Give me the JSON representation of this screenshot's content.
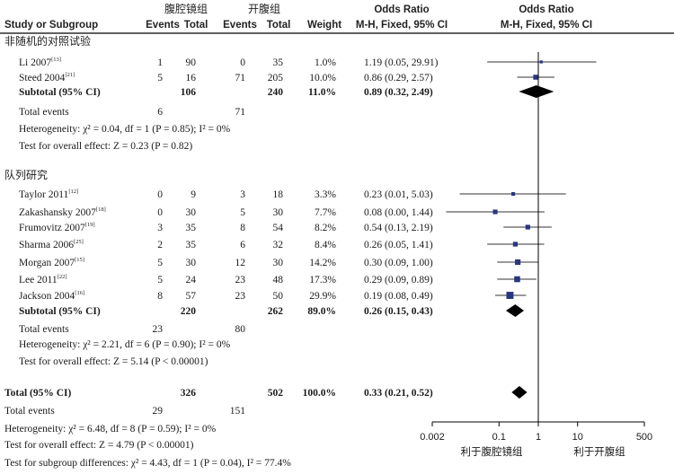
{
  "header": {
    "study_col": "Study or Subgroup",
    "group1": "腹腔镜组",
    "group2": "开腹组",
    "events": "Events",
    "total": "Total",
    "weight": "Weight",
    "or1_title": "Odds Ratio",
    "or1_sub": "M-H, Fixed, 95% CI",
    "or2_title": "Odds Ratio",
    "or2_sub": "M-H, Fixed, 95% CI"
  },
  "subgroups": [
    {
      "title": "非随机的对照试验",
      "studies": [
        {
          "name": "Li 2007",
          "ref": "[13]",
          "e1": "1",
          "t1": "90",
          "e2": "0",
          "t2": "35",
          "weight": "1.0%",
          "ci_text": "1.19 (0.05, 29.91)",
          "or": 1.19,
          "lo": 0.05,
          "hi": 29.91,
          "w": 1.0
        },
        {
          "name": "Steed 2004",
          "ref": "[21]",
          "e1": "5",
          "t1": "16",
          "e2": "71",
          "t2": "205",
          "weight": "10.0%",
          "ci_text": "0.86 (0.29, 2.57)",
          "or": 0.86,
          "lo": 0.29,
          "hi": 2.57,
          "w": 10.0
        }
      ],
      "subtotal": {
        "label": "Subtotal (95% CI)",
        "t1": "106",
        "t2": "240",
        "weight": "11.0%",
        "ci_text": "0.89 (0.32, 2.49)",
        "or": 0.89,
        "lo": 0.32,
        "hi": 2.49
      },
      "total_events": {
        "label": "Total events",
        "e1": "6",
        "e2": "71"
      },
      "heterogeneity": "Heterogeneity: χ² = 0.04, df = 1 (P = 0.85); I² = 0%",
      "overall": "Test for overall effect: Z = 0.23 (P = 0.82)"
    },
    {
      "title": "队列研究",
      "studies": [
        {
          "name": "Taylor 2011",
          "ref": "[12]",
          "e1": "0",
          "t1": "9",
          "e2": "3",
          "t2": "18",
          "weight": "3.3%",
          "ci_text": "0.23 (0.01, 5.03)",
          "or": 0.23,
          "lo": 0.01,
          "hi": 5.03,
          "w": 3.3
        },
        {
          "name": "Zakashansky 2007",
          "ref": "[18]",
          "e1": "0",
          "t1": "30",
          "e2": "5",
          "t2": "30",
          "weight": "7.7%",
          "ci_text": "0.08 (0.00, 1.44)",
          "or": 0.08,
          "lo": 0.0045,
          "hi": 1.44,
          "w": 7.7
        },
        {
          "name": "Frumovitz 2007",
          "ref": "[19]",
          "e1": "3",
          "t1": "35",
          "e2": "8",
          "t2": "54",
          "weight": "8.2%",
          "ci_text": "0.54 (0.13, 2.19)",
          "or": 0.54,
          "lo": 0.13,
          "hi": 2.19,
          "w": 8.2
        },
        {
          "name": "Sharma 2006",
          "ref": "[25]",
          "e1": "2",
          "t1": "35",
          "e2": "6",
          "t2": "32",
          "weight": "8.4%",
          "ci_text": "0.26 (0.05, 1.41)",
          "or": 0.26,
          "lo": 0.05,
          "hi": 1.41,
          "w": 8.4
        },
        {
          "name": "Morgan 2007",
          "ref": "[15]",
          "e1": "5",
          "t1": "30",
          "e2": "12",
          "t2": "30",
          "weight": "14.2%",
          "ci_text": "0.30 (0.09, 1.00)",
          "or": 0.3,
          "lo": 0.09,
          "hi": 1.0,
          "w": 14.2
        },
        {
          "name": "Lee 2011",
          "ref": "[22]",
          "e1": "5",
          "t1": "24",
          "e2": "23",
          "t2": "48",
          "weight": "17.3%",
          "ci_text": "0.29 (0.09, 0.89)",
          "or": 0.29,
          "lo": 0.09,
          "hi": 0.89,
          "w": 17.3
        },
        {
          "name": "Jackson 2004",
          "ref": "[16]",
          "e1": "8",
          "t1": "57",
          "e2": "23",
          "t2": "50",
          "weight": "29.9%",
          "ci_text": "0.19 (0.08, 0.49)",
          "or": 0.19,
          "lo": 0.08,
          "hi": 0.49,
          "w": 29.9
        }
      ],
      "subtotal": {
        "label": "Subtotal (95% CI)",
        "t1": "220",
        "t2": "262",
        "weight": "89.0%",
        "ci_text": "0.26 (0.15, 0.43)",
        "or": 0.26,
        "lo": 0.15,
        "hi": 0.43
      },
      "total_events": {
        "label": "Total events",
        "e1": "23",
        "e2": "80"
      },
      "heterogeneity": "Heterogeneity: χ² = 2.21, df = 6 (P = 0.90); I² = 0%",
      "overall": "Test for overall effect: Z = 5.14 (P < 0.00001)"
    }
  ],
  "total": {
    "label": "Total (95% CI)",
    "t1": "326",
    "t2": "502",
    "weight": "100.0%",
    "ci_text": "0.33 (0.21, 0.52)",
    "or": 0.33,
    "lo": 0.21,
    "hi": 0.52,
    "events_label": "Total events",
    "e1": "29",
    "e2": "151",
    "heterogeneity": "Heterogeneity: χ² = 6.48, df = 8 (P = 0.59); I² = 0%",
    "overall": "Test for overall effect: Z = 4.79 (P < 0.00001)",
    "subgroup_diff": "Test for subgroup differences: χ² = 4.43, df = 1 (P = 0.04), I² = 77.4%"
  },
  "axis": {
    "ticks": [
      0.002,
      0.1,
      1,
      10,
      500
    ],
    "tick_labels": [
      "0.002",
      "0.1",
      "1",
      "10",
      "500"
    ],
    "favours_left": "利于腹腔镜组",
    "favours_right": "利于开腹组"
  },
  "colors": {
    "marker": "#2a3580",
    "text": "#1a1a1a",
    "header": "#222222"
  },
  "chart_data": {
    "type": "scatter",
    "scale": "log",
    "xlim": [
      0.002,
      500
    ],
    "reference_line": 1,
    "series": [
      {
        "name": "Li 2007",
        "or": 1.19,
        "ci": [
          0.05,
          29.91
        ],
        "weight": 1.0
      },
      {
        "name": "Steed 2004",
        "or": 0.86,
        "ci": [
          0.29,
          2.57
        ],
        "weight": 10.0
      },
      {
        "name": "Taylor 2011",
        "or": 0.23,
        "ci": [
          0.01,
          5.03
        ],
        "weight": 3.3
      },
      {
        "name": "Zakashansky 2007",
        "or": 0.08,
        "ci": [
          0.0,
          1.44
        ],
        "weight": 7.7
      },
      {
        "name": "Frumovitz 2007",
        "or": 0.54,
        "ci": [
          0.13,
          2.19
        ],
        "weight": 8.2
      },
      {
        "name": "Sharma 2006",
        "or": 0.26,
        "ci": [
          0.05,
          1.41
        ],
        "weight": 8.4
      },
      {
        "name": "Morgan 2007",
        "or": 0.3,
        "ci": [
          0.09,
          1.0
        ],
        "weight": 14.2
      },
      {
        "name": "Lee 2011",
        "or": 0.29,
        "ci": [
          0.09,
          0.89
        ],
        "weight": 17.3
      },
      {
        "name": "Jackson 2004",
        "or": 0.19,
        "ci": [
          0.08,
          0.49
        ],
        "weight": 29.9
      }
    ],
    "pooled": [
      {
        "name": "Subtotal (95% CI)",
        "or": 0.89,
        "ci": [
          0.32,
          2.49
        ]
      },
      {
        "name": "Subtotal (95% CI)",
        "or": 0.26,
        "ci": [
          0.15,
          0.43
        ]
      },
      {
        "name": "Total (95% CI)",
        "or": 0.33,
        "ci": [
          0.21,
          0.52
        ]
      }
    ]
  }
}
